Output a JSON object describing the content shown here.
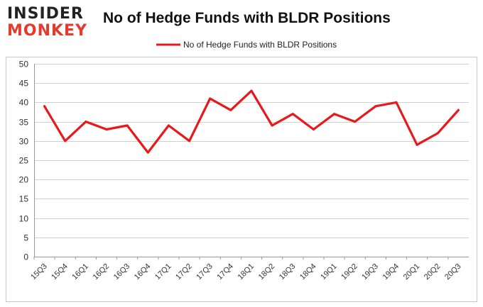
{
  "logo": {
    "line1": "INSIDER",
    "line2": "MONKEY"
  },
  "chart_data": {
    "type": "line",
    "title": "No of Hedge Funds with BLDR Positions",
    "xlabel": "",
    "ylabel": "",
    "categories": [
      "15Q3",
      "15Q4",
      "16Q1",
      "16Q2",
      "16Q3",
      "16Q4",
      "17Q1",
      "17Q2",
      "17Q3",
      "17Q4",
      "18Q1",
      "18Q2",
      "18Q3",
      "18Q4",
      "19Q1",
      "19Q2",
      "19Q3",
      "19Q4",
      "20Q1",
      "20Q2",
      "20Q3"
    ],
    "series": [
      {
        "name": "No of Hedge Funds with BLDR Positions",
        "color": "#e8191a",
        "values": [
          39,
          30,
          35,
          33,
          34,
          27,
          34,
          30,
          41,
          38,
          43,
          34,
          37,
          33,
          37,
          35,
          39,
          40,
          29,
          32,
          38
        ]
      }
    ],
    "ylim": [
      0,
      50
    ],
    "yticks": [
      0,
      5,
      10,
      15,
      20,
      25,
      30,
      35,
      40,
      45,
      50
    ],
    "grid": true,
    "legend": "top-center"
  }
}
